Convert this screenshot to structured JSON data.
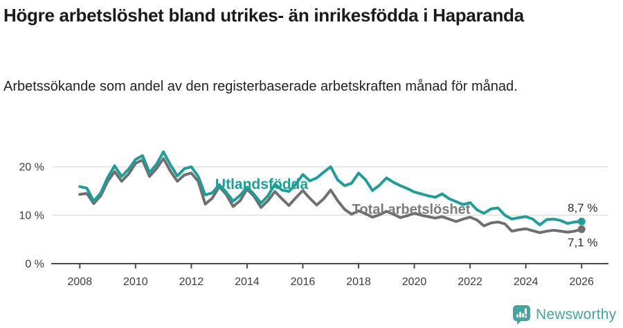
{
  "header": {
    "title": "Högre arbetslöshet bland utrikes- än inrikesfödda i Haparanda",
    "subtitle": "Arbetssökande som andel av den registerbaserade arbetskraften månad för månad."
  },
  "chart_data": {
    "type": "line",
    "title": "Högre arbetslöshet bland utrikes- än inrikesfödda i Haparanda",
    "subtitle": "Arbetssökande som andel av den registerbaserade arbetskraften månad för månad.",
    "xlabel": "",
    "ylabel": "",
    "grid": "horizontal-only",
    "legend_position": "inline-labels",
    "xlim": [
      2007.0,
      2026.95
    ],
    "ylim": [
      0,
      25
    ],
    "x_ticks": [
      2008,
      2010,
      2012,
      2014,
      2016,
      2018,
      2020,
      2022,
      2024,
      2026
    ],
    "x_tick_labels": [
      "2008",
      "2010",
      "2012",
      "2014",
      "2016",
      "2018",
      "2020",
      "2022",
      "2024",
      "2026"
    ],
    "y_ticks": [
      0,
      10,
      20
    ],
    "y_tick_labels": [
      "0 %",
      "10 %",
      "20 %"
    ],
    "x": [
      2008.0,
      2008.25,
      2008.5,
      2008.75,
      2009.0,
      2009.25,
      2009.5,
      2009.75,
      2010.0,
      2010.25,
      2010.5,
      2010.75,
      2011.0,
      2011.25,
      2011.5,
      2011.75,
      2012.0,
      2012.25,
      2012.5,
      2012.75,
      2013.0,
      2013.25,
      2013.5,
      2013.75,
      2014.0,
      2014.25,
      2014.5,
      2014.75,
      2015.0,
      2015.25,
      2015.5,
      2015.75,
      2016.0,
      2016.25,
      2016.5,
      2016.75,
      2017.0,
      2017.25,
      2017.5,
      2017.75,
      2018.0,
      2018.25,
      2018.5,
      2018.75,
      2019.0,
      2019.25,
      2019.5,
      2019.75,
      2020.0,
      2020.25,
      2020.5,
      2020.75,
      2021.0,
      2021.25,
      2021.5,
      2021.75,
      2022.0,
      2022.25,
      2022.5,
      2022.75,
      2023.0,
      2023.25,
      2023.5,
      2023.75,
      2024.0,
      2024.25,
      2024.5,
      2024.75,
      2025.0,
      2025.25,
      2025.5,
      2025.75,
      2026.0
    ],
    "series": [
      {
        "name": "Utlandsfödda",
        "color": "#1d9f97",
        "end_label": "8,7 %",
        "end_value": 8.7,
        "values": [
          15.9,
          15.6,
          12.9,
          14.6,
          17.8,
          20.2,
          18.0,
          19.5,
          21.5,
          22.3,
          18.8,
          20.5,
          23.1,
          20.4,
          18.1,
          19.6,
          20.0,
          18.0,
          14.2,
          14.6,
          16.3,
          14.8,
          12.9,
          14.1,
          15.8,
          14.3,
          12.5,
          14.0,
          16.4,
          15.2,
          14.9,
          16.4,
          18.4,
          17.1,
          17.7,
          18.9,
          20.0,
          17.3,
          16.1,
          16.6,
          18.7,
          17.3,
          15.1,
          16.2,
          17.7,
          16.8,
          16.1,
          15.5,
          14.8,
          14.4,
          14.0,
          13.7,
          14.4,
          13.4,
          12.8,
          12.2,
          12.6,
          11.1,
          10.4,
          11.3,
          11.5,
          10.0,
          9.2,
          9.5,
          9.7,
          9.2,
          8.0,
          9.1,
          9.2,
          8.9,
          8.3,
          8.6,
          8.7
        ]
      },
      {
        "name": "Total arbetslöshet",
        "color": "#6f6f71",
        "end_label": "7,1 %",
        "end_value": 7.1,
        "values": [
          14.3,
          14.5,
          12.4,
          14.0,
          17.0,
          19.0,
          17.0,
          18.5,
          20.7,
          21.4,
          18.0,
          19.6,
          21.7,
          19.1,
          17.0,
          18.3,
          18.7,
          17.0,
          12.3,
          13.5,
          15.9,
          14.3,
          11.8,
          13.0,
          15.4,
          13.9,
          11.6,
          13.0,
          14.9,
          13.4,
          12.0,
          13.6,
          15.1,
          13.5,
          12.1,
          13.4,
          15.2,
          13.0,
          11.2,
          10.2,
          10.9,
          10.3,
          9.6,
          10.1,
          10.8,
          10.2,
          9.5,
          9.9,
          10.4,
          10.0,
          9.7,
          9.4,
          9.7,
          9.2,
          8.7,
          9.2,
          9.6,
          9.0,
          7.8,
          8.4,
          8.6,
          8.2,
          6.7,
          7.0,
          7.2,
          6.8,
          6.4,
          6.7,
          6.9,
          6.7,
          6.5,
          6.7,
          7.1
        ]
      }
    ]
  },
  "footer": {
    "brand": "Newsworthy"
  },
  "colors": {
    "accent_teal": "#1d9f97",
    "line_gray": "#6f6f71",
    "logo_teal": "#45a49d",
    "gridline": "#d9d9d9",
    "axis": "#4a4a4a"
  }
}
